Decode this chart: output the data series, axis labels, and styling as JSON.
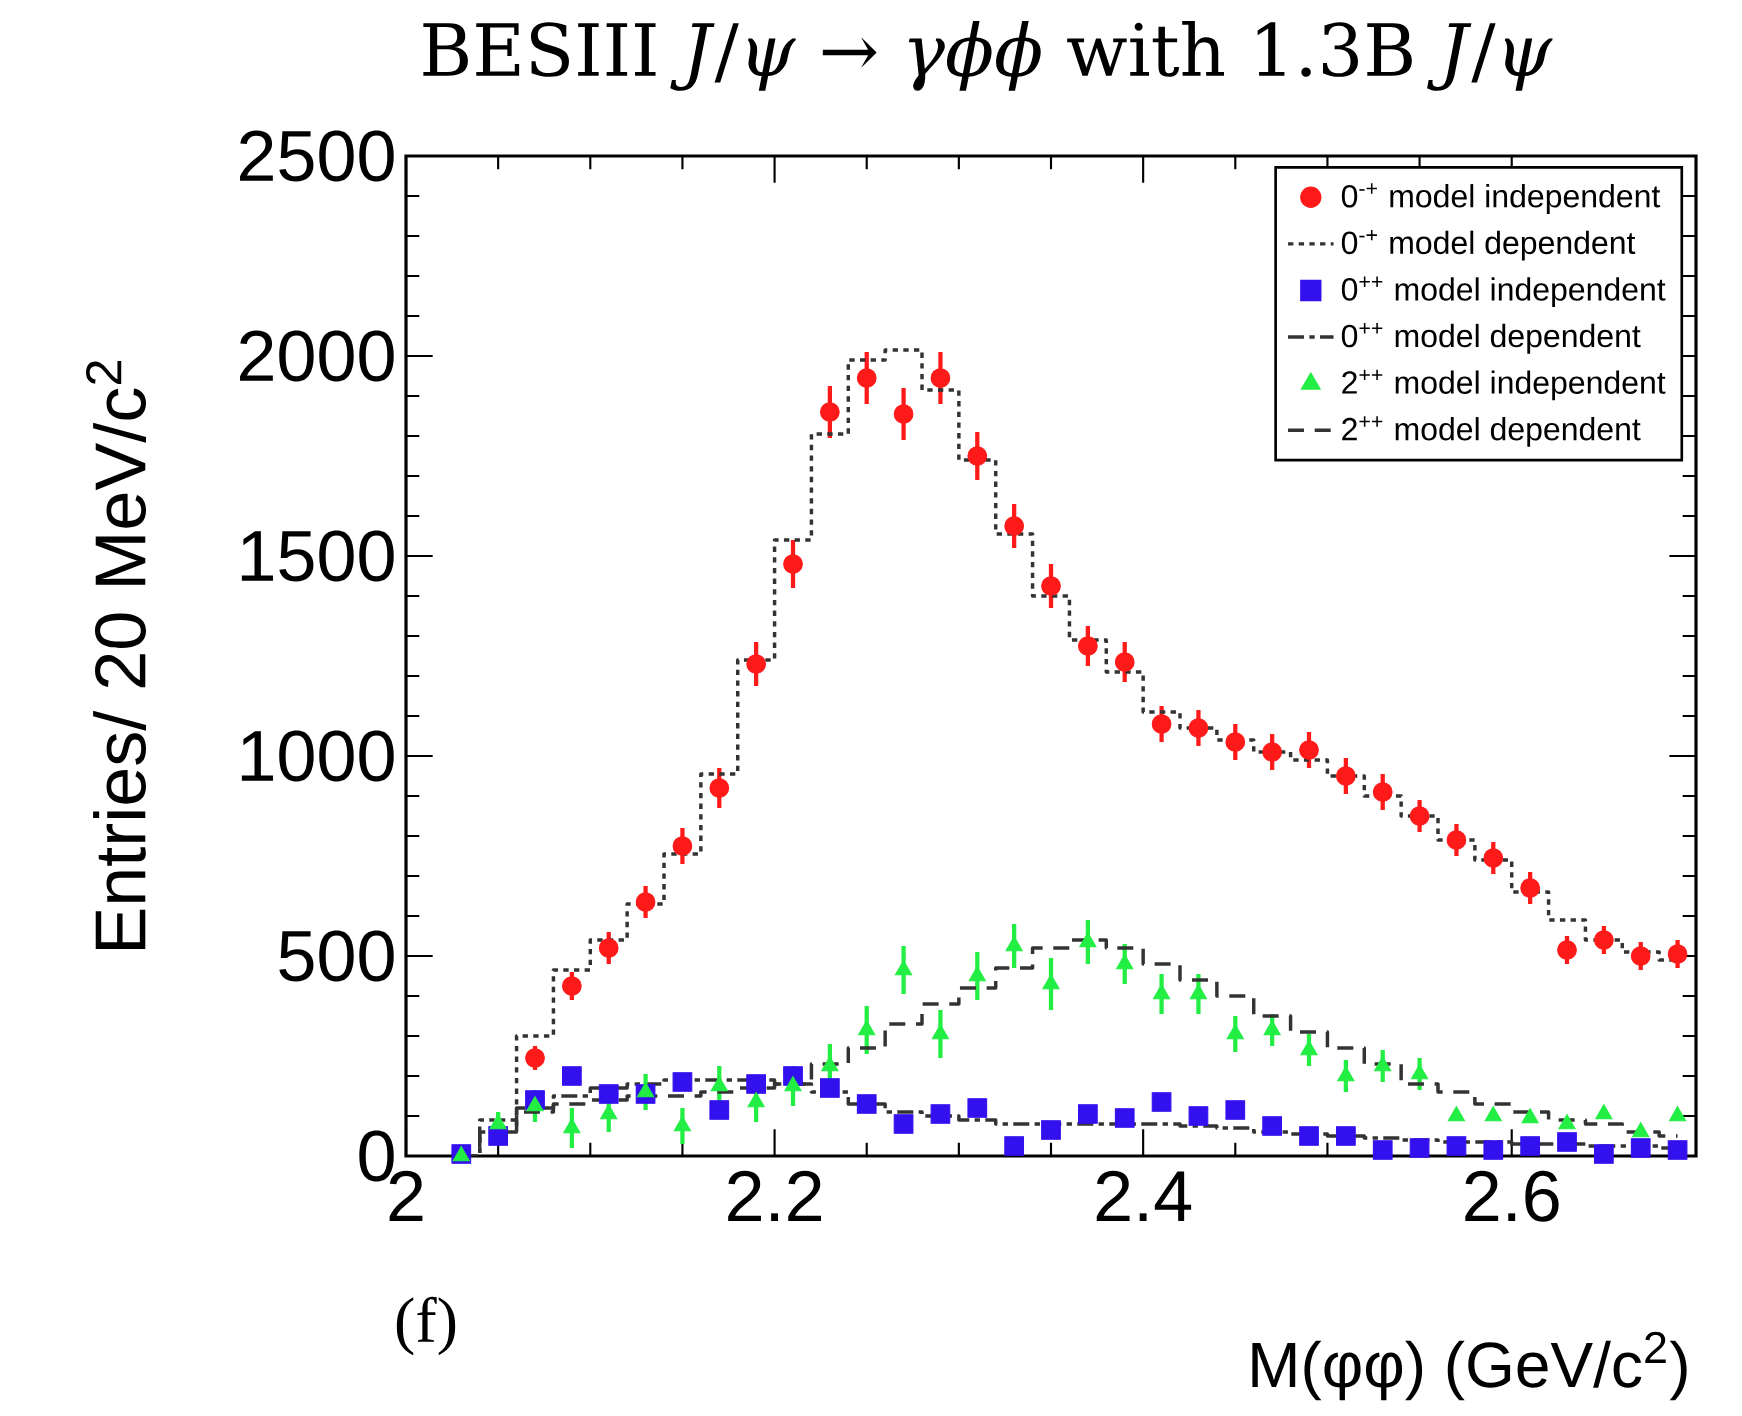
{
  "chart_data": {
    "type": "scatter",
    "title": "BESIII  *J*/*ψ* → *γϕϕ* with 1.3B *J*/*ψ*",
    "xlabel": "M(φφ) (GeV/c$^{2}$)",
    "ylabel": "Entries/ 20 MeV/c$^{2}$",
    "annotations": [
      "(f)"
    ],
    "x": [
      2.03,
      2.05,
      2.07,
      2.09,
      2.11,
      2.13,
      2.15,
      2.17,
      2.19,
      2.21,
      2.23,
      2.25,
      2.27,
      2.29,
      2.31,
      2.33,
      2.35,
      2.37,
      2.39,
      2.41,
      2.43,
      2.45,
      2.47,
      2.49,
      2.51,
      2.53,
      2.55,
      2.57,
      2.59,
      2.61,
      2.63,
      2.65,
      2.67,
      2.69
    ],
    "xlim": [
      2,
      2.7
    ],
    "xticks": [
      2,
      2.2,
      2.4,
      2.6
    ],
    "ylim": [
      0,
      2500
    ],
    "yticks": [
      0,
      500,
      1000,
      1500,
      2000,
      2500
    ],
    "legend": "top right",
    "grid": false,
    "series": [
      {
        "name": "0$^{-+}$ model independent",
        "type": "scatter",
        "marker": "circle",
        "color": "#ff1a1a",
        "values": [
          null,
          null,
          245,
          425,
          520,
          635,
          775,
          920,
          1230,
          1480,
          1860,
          1945,
          1855,
          1945,
          1750,
          1575,
          1425,
          1275,
          1235,
          1080,
          1070,
          1035,
          1010,
          1015,
          950,
          910,
          850,
          790,
          745,
          670,
          515,
          540,
          500,
          505
        ],
        "errors": [
          null,
          null,
          30,
          35,
          40,
          40,
          45,
          50,
          55,
          60,
          65,
          65,
          65,
          65,
          60,
          55,
          55,
          50,
          50,
          45,
          45,
          45,
          45,
          45,
          45,
          45,
          40,
          40,
          40,
          40,
          35,
          35,
          35,
          35
        ]
      },
      {
        "name": "0$^{-+}$ model dependent",
        "type": "step",
        "line_style": "dotted",
        "color": "#333333",
        "values": [
          0,
          90,
          300,
          465,
          540,
          630,
          755,
          955,
          1240,
          1540,
          1805,
          1990,
          2015,
          1915,
          1740,
          1555,
          1400,
          1290,
          1210,
          1110,
          1070,
          1040,
          1010,
          990,
          950,
          900,
          850,
          790,
          740,
          660,
          590,
          540,
          510,
          490
        ]
      },
      {
        "name": "0$^{++}$ model independent",
        "type": "scatter",
        "marker": "square",
        "color": "#3311ee",
        "values": [
          5,
          50,
          140,
          200,
          155,
          155,
          185,
          115,
          180,
          200,
          170,
          130,
          80,
          105,
          120,
          25,
          65,
          105,
          95,
          135,
          100,
          115,
          75,
          50,
          50,
          15,
          20,
          25,
          15,
          25,
          35,
          5,
          20,
          15
        ]
      },
      {
        "name": "0$^{++}$ model dependent",
        "type": "step",
        "line_style": "dashdot",
        "color": "#333333",
        "values": [
          0,
          60,
          120,
          150,
          170,
          180,
          190,
          190,
          190,
          180,
          160,
          130,
          110,
          100,
          90,
          80,
          80,
          80,
          80,
          80,
          75,
          70,
          60,
          55,
          50,
          45,
          40,
          35,
          35,
          30,
          30,
          25,
          25,
          20
        ]
      },
      {
        "name": "2$^{++}$ model independent",
        "type": "scatter",
        "marker": "triangle",
        "color": "#22ee44",
        "values": [
          0,
          80,
          125,
          70,
          105,
          160,
          75,
          175,
          135,
          175,
          225,
          315,
          465,
          305,
          450,
          525,
          430,
          535,
          480,
          405,
          405,
          305,
          315,
          265,
          200,
          225,
          205,
          100,
          100,
          95,
          80,
          105,
          60,
          100
        ],
        "errors": [
          null,
          30,
          40,
          50,
          45,
          45,
          45,
          50,
          50,
          50,
          55,
          60,
          60,
          60,
          60,
          55,
          65,
          55,
          50,
          50,
          50,
          45,
          40,
          40,
          40,
          40,
          40,
          null,
          null,
          null,
          null,
          null,
          null,
          null
        ]
      },
      {
        "name": "2$^{++}$ model dependent",
        "type": "step",
        "line_style": "dashed",
        "color": "#333333",
        "values": [
          0,
          60,
          110,
          130,
          140,
          150,
          150,
          160,
          170,
          180,
          230,
          270,
          330,
          380,
          420,
          470,
          520,
          540,
          520,
          480,
          440,
          400,
          350,
          310,
          270,
          230,
          180,
          160,
          130,
          110,
          90,
          80,
          60,
          50
        ]
      }
    ]
  }
}
